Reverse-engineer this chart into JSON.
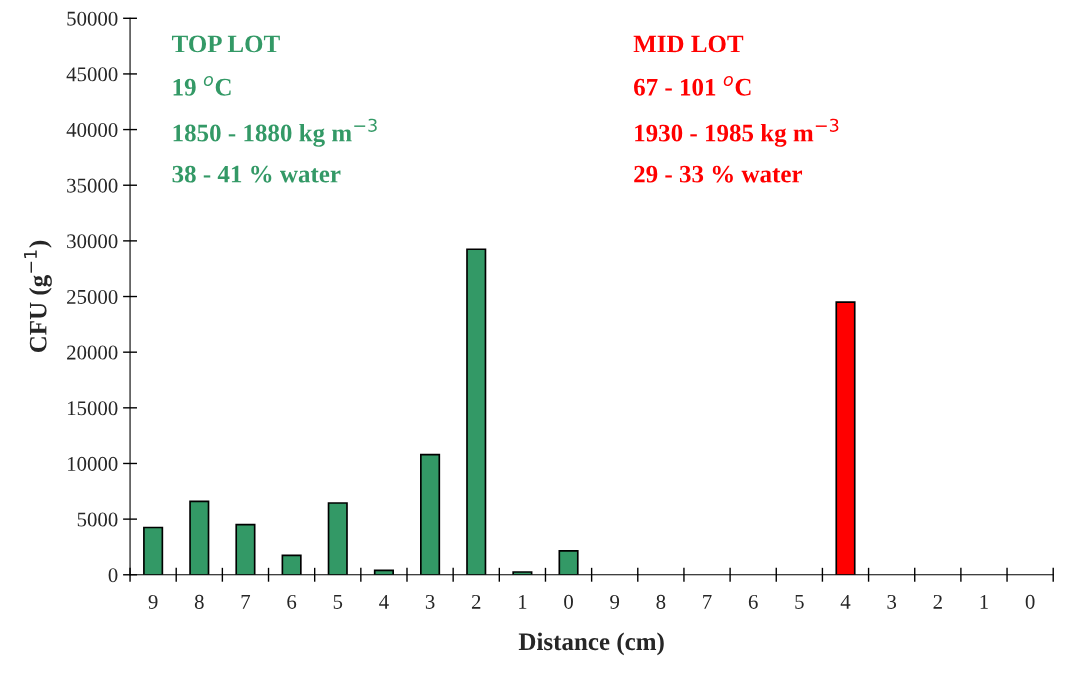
{
  "chart_data": {
    "type": "bar",
    "xlabel": "Distance (cm)",
    "ylabel": "CFU (g$^{−1}$)",
    "categories": [
      "9",
      "8",
      "7",
      "6",
      "5",
      "4",
      "3",
      "2",
      "1",
      "0",
      "9",
      "8",
      "7",
      "6",
      "5",
      "4",
      "3",
      "2",
      "1",
      "0"
    ],
    "series": [
      {
        "name": "TOP LOT",
        "color": "#339966",
        "values": [
          4250,
          6600,
          4500,
          1750,
          6450,
          400,
          10800,
          29250,
          250,
          2150,
          null,
          null,
          null,
          null,
          null,
          null,
          null,
          null,
          null,
          null
        ]
      },
      {
        "name": "MID LOT",
        "color": "#ff0000",
        "values": [
          null,
          null,
          null,
          null,
          null,
          null,
          null,
          null,
          null,
          null,
          null,
          null,
          null,
          null,
          null,
          24500,
          null,
          null,
          null,
          null
        ]
      }
    ],
    "annotations": [
      "19 $^{o}$C",
      "1850 - 1880 kg m$^{−3}$",
      "38 - 41 % water",
      "67 - 101 $^{o}$C",
      "1930 - 1985 kg m$^{−3}$",
      "29 - 33 % water"
    ],
    "ylim": [
      0,
      50000
    ],
    "yticks": [
      0,
      5000,
      10000,
      15000,
      20000,
      25000,
      30000,
      35000,
      40000,
      45000,
      50000
    ],
    "grid": false,
    "legend": false
  }
}
